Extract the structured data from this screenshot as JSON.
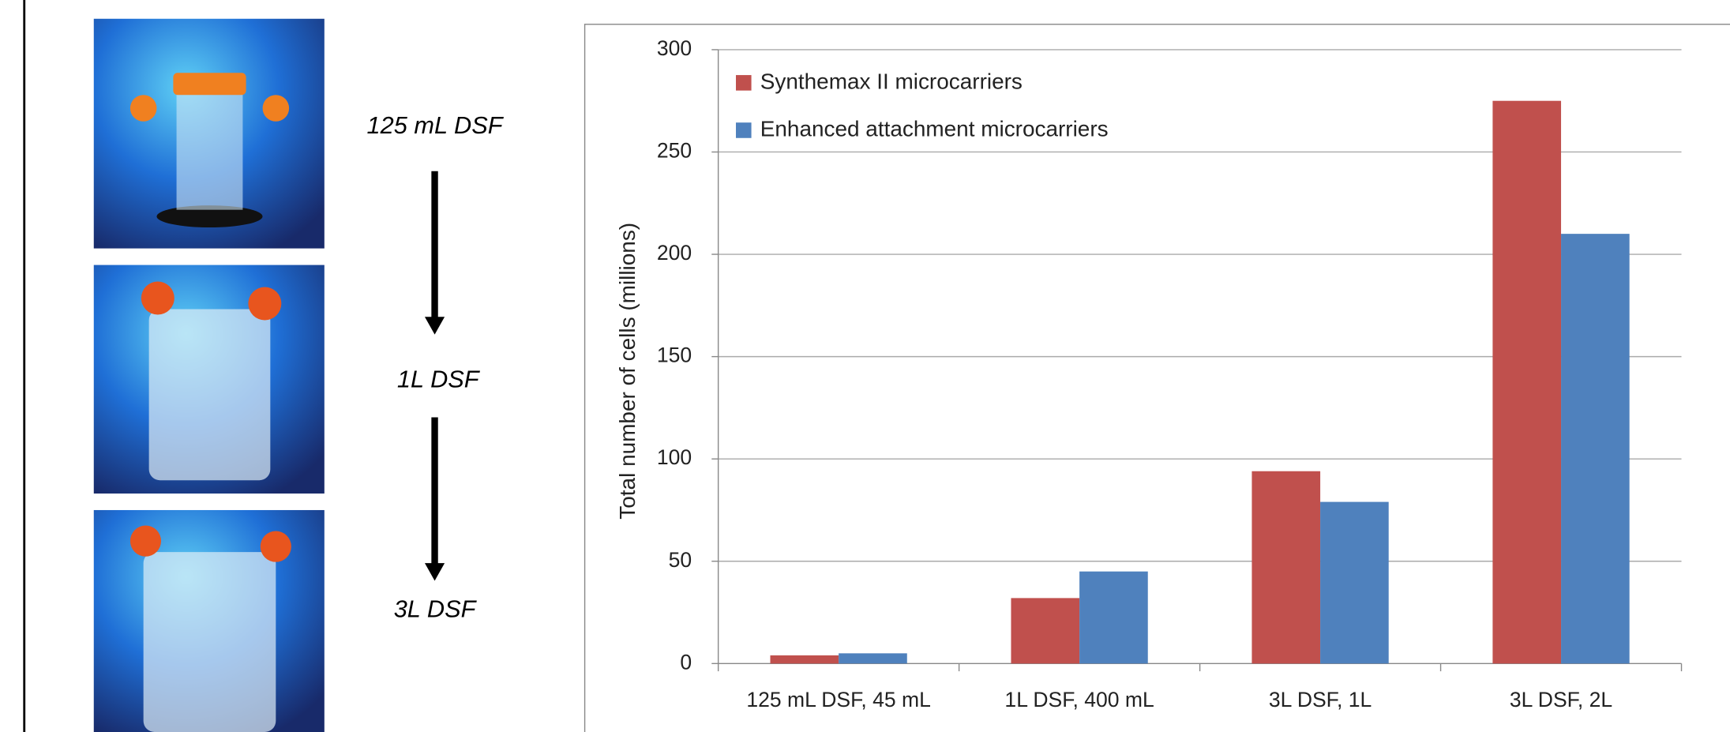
{
  "stages": [
    "125 mL DSF",
    "1L DSF",
    "3L DSF"
  ],
  "chart_data": {
    "type": "bar",
    "y_label": "Total number of cells (millions)",
    "categories": [
      "125 mL DSF, 45 mL",
      "1L DSF, 400 mL",
      "3L DSF, 1L",
      "3L DSF, 2L"
    ],
    "series": [
      {
        "name": "Synthemax II microcarriers",
        "color": "#c0504d",
        "values": [
          4,
          32,
          94,
          275
        ]
      },
      {
        "name": "Enhanced attachment microcarriers",
        "color": "#4f81bd",
        "values": [
          5,
          45,
          79,
          210
        ]
      }
    ],
    "ylim": [
      0,
      300
    ],
    "yticks": [
      0,
      50,
      100,
      150,
      200,
      250,
      300
    ],
    "grid": true,
    "legend": "top-left"
  }
}
